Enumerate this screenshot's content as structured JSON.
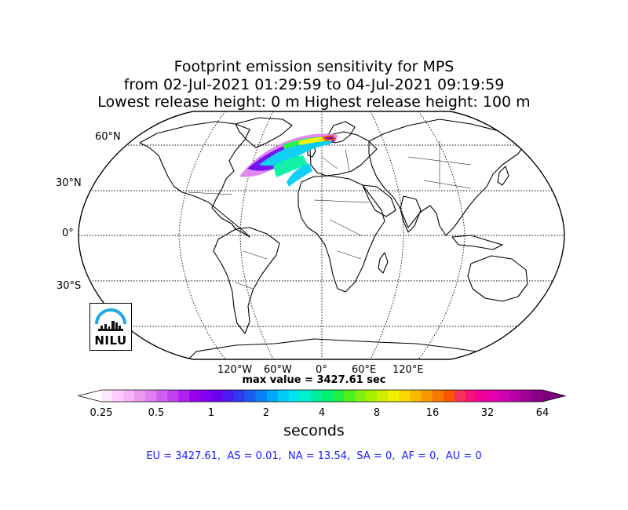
{
  "title": {
    "line1": "Footprint emission sensitivity for MPS",
    "line2": "from 02-Jul-2021 01:29:59 to 04-Jul-2021 09:19:59",
    "line3": "Lowest release height: 0 m       Highest release height: 100 m"
  },
  "map": {
    "projection": "Robinson",
    "lat_labels": [
      "60°N",
      "30°N",
      "0°",
      "30°S"
    ],
    "lon_labels": [
      "120°W",
      "60°W",
      "0°",
      "60°E",
      "120°E"
    ],
    "gridlines": true
  },
  "max_value_label": "max value = 3427.61 sec",
  "colorbar": {
    "ticks": [
      "0.25",
      "0.5",
      "1",
      "2",
      "4",
      "8",
      "16",
      "32",
      "64"
    ],
    "units": "seconds",
    "colors": [
      "#ffe6ff",
      "#ffccff",
      "#f7b3f7",
      "#eb99f0",
      "#e080f0",
      "#d060f0",
      "#c040f0",
      "#b020f0",
      "#9a00f0",
      "#8000f0",
      "#6a00f0",
      "#4c1af0",
      "#2f3af0",
      "#1a5cf0",
      "#0a80f5",
      "#00a8f5",
      "#00ccf5",
      "#00e6ee",
      "#00f0d0",
      "#00f0a0",
      "#00f070",
      "#20f040",
      "#50f020",
      "#80f010",
      "#a8f000",
      "#d0f000",
      "#f0f000",
      "#f8d800",
      "#f8b800",
      "#f89800",
      "#f87800",
      "#f85800",
      "#f8305a",
      "#f8107a",
      "#f0009a",
      "#e800b0",
      "#d000b0",
      "#b800a8",
      "#a00098",
      "#880088"
    ],
    "under_color": "#ffffff",
    "over_color": "#7a007a"
  },
  "region_values": "EU = 3427.61,  AS = 0.01,  NA = 13.54,  SA = 0,  AF = 0,  AU = 0",
  "logo": {
    "text": "NILU"
  }
}
